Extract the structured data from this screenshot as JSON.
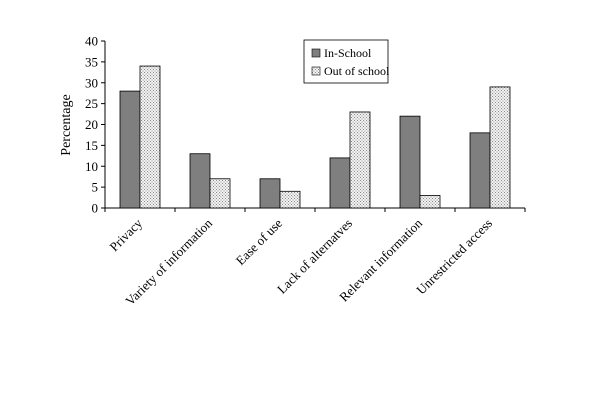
{
  "chart_data": {
    "type": "bar",
    "categories": [
      "Privacy",
      "Variety of information",
      "Ease of use",
      "Lack of alternatves",
      "Relevant information",
      "Unrestricted access"
    ],
    "series": [
      {
        "name": "In-School",
        "values": [
          28,
          13,
          7,
          12,
          22,
          18
        ],
        "fill": "#7f7f7f",
        "pattern": "solid"
      },
      {
        "name": "Out of school",
        "values": [
          34,
          7,
          4,
          23,
          3,
          29
        ],
        "fill": "#e6e6e6",
        "pattern": "dotted"
      }
    ],
    "title": "",
    "xlabel": "",
    "ylabel": "Percentage",
    "ylim": [
      0,
      40
    ],
    "yticks": [
      0,
      5,
      10,
      15,
      20,
      25,
      30,
      35,
      40
    ],
    "grid": false,
    "legend_position": "top-right"
  }
}
